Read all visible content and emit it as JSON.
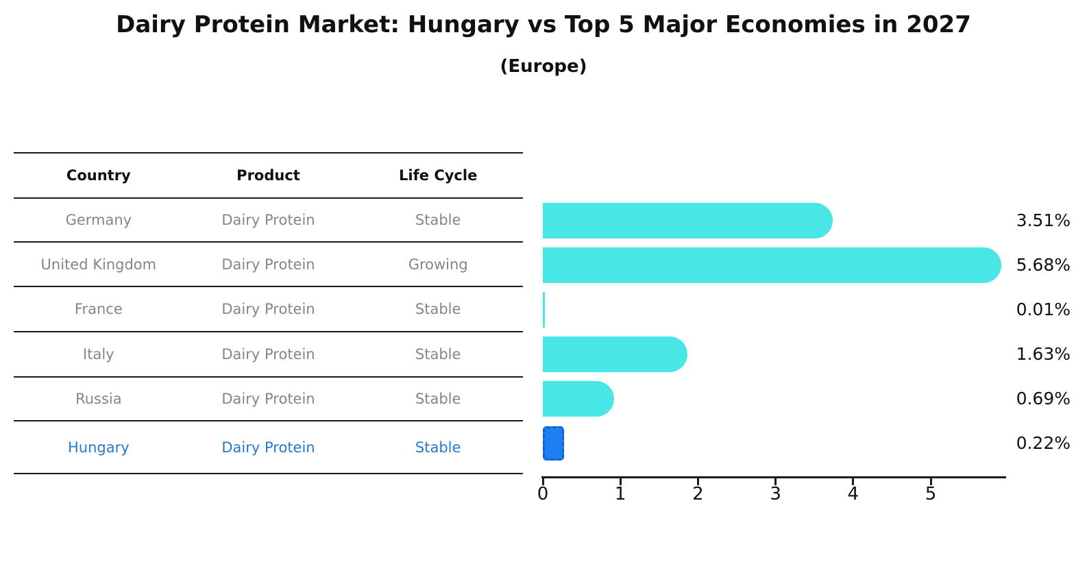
{
  "title": "Dairy Protein Market: Hungary vs Top 5 Major Economies in 2027",
  "subtitle": "(Europe)",
  "colors": {
    "bar_cyan": "#48E6E4",
    "highlight_blue": "#1E7FF2",
    "highlight_border": "#1260D8",
    "highlight_text": "#2878CB",
    "table_text_gray": "#858585",
    "axis_black": "#1a1a1a"
  },
  "table": {
    "headers": [
      "Country",
      "Product",
      "Life Cycle"
    ],
    "rows": [
      {
        "country": "Germany",
        "product": "Dairy Protein",
        "life_cycle": "Stable"
      },
      {
        "country": "United Kingdom",
        "product": "Dairy Protein",
        "life_cycle": "Growing"
      },
      {
        "country": "France",
        "product": "Dairy Protein",
        "life_cycle": "Stable"
      },
      {
        "country": "Italy",
        "product": "Dairy Protein",
        "life_cycle": "Stable"
      },
      {
        "country": "Russia",
        "product": "Dairy Protein",
        "life_cycle": "Stable"
      },
      {
        "country": "Hungary",
        "product": "Dairy Protein",
        "life_cycle": "Stable"
      }
    ]
  },
  "chart_data": {
    "type": "bar",
    "orientation": "horizontal",
    "title": "Dairy Protein Market: Hungary vs Top 5 Major Economies in 2027",
    "subtitle": "(Europe)",
    "categories": [
      "Germany",
      "United Kingdom",
      "France",
      "Italy",
      "Russia",
      "Hungary"
    ],
    "values": [
      3.51,
      5.68,
      0.01,
      1.63,
      0.69,
      0.22
    ],
    "value_labels": [
      "3.51%",
      "5.68%",
      "0.01%",
      "1.63%",
      "0.69%",
      "0.22%"
    ],
    "unit": "%",
    "x_ticks": [
      "0",
      "1",
      "2",
      "3",
      "4",
      "5"
    ],
    "xlim": [
      0,
      6
    ],
    "grid": false,
    "legend": null,
    "highlight_index": 5
  }
}
